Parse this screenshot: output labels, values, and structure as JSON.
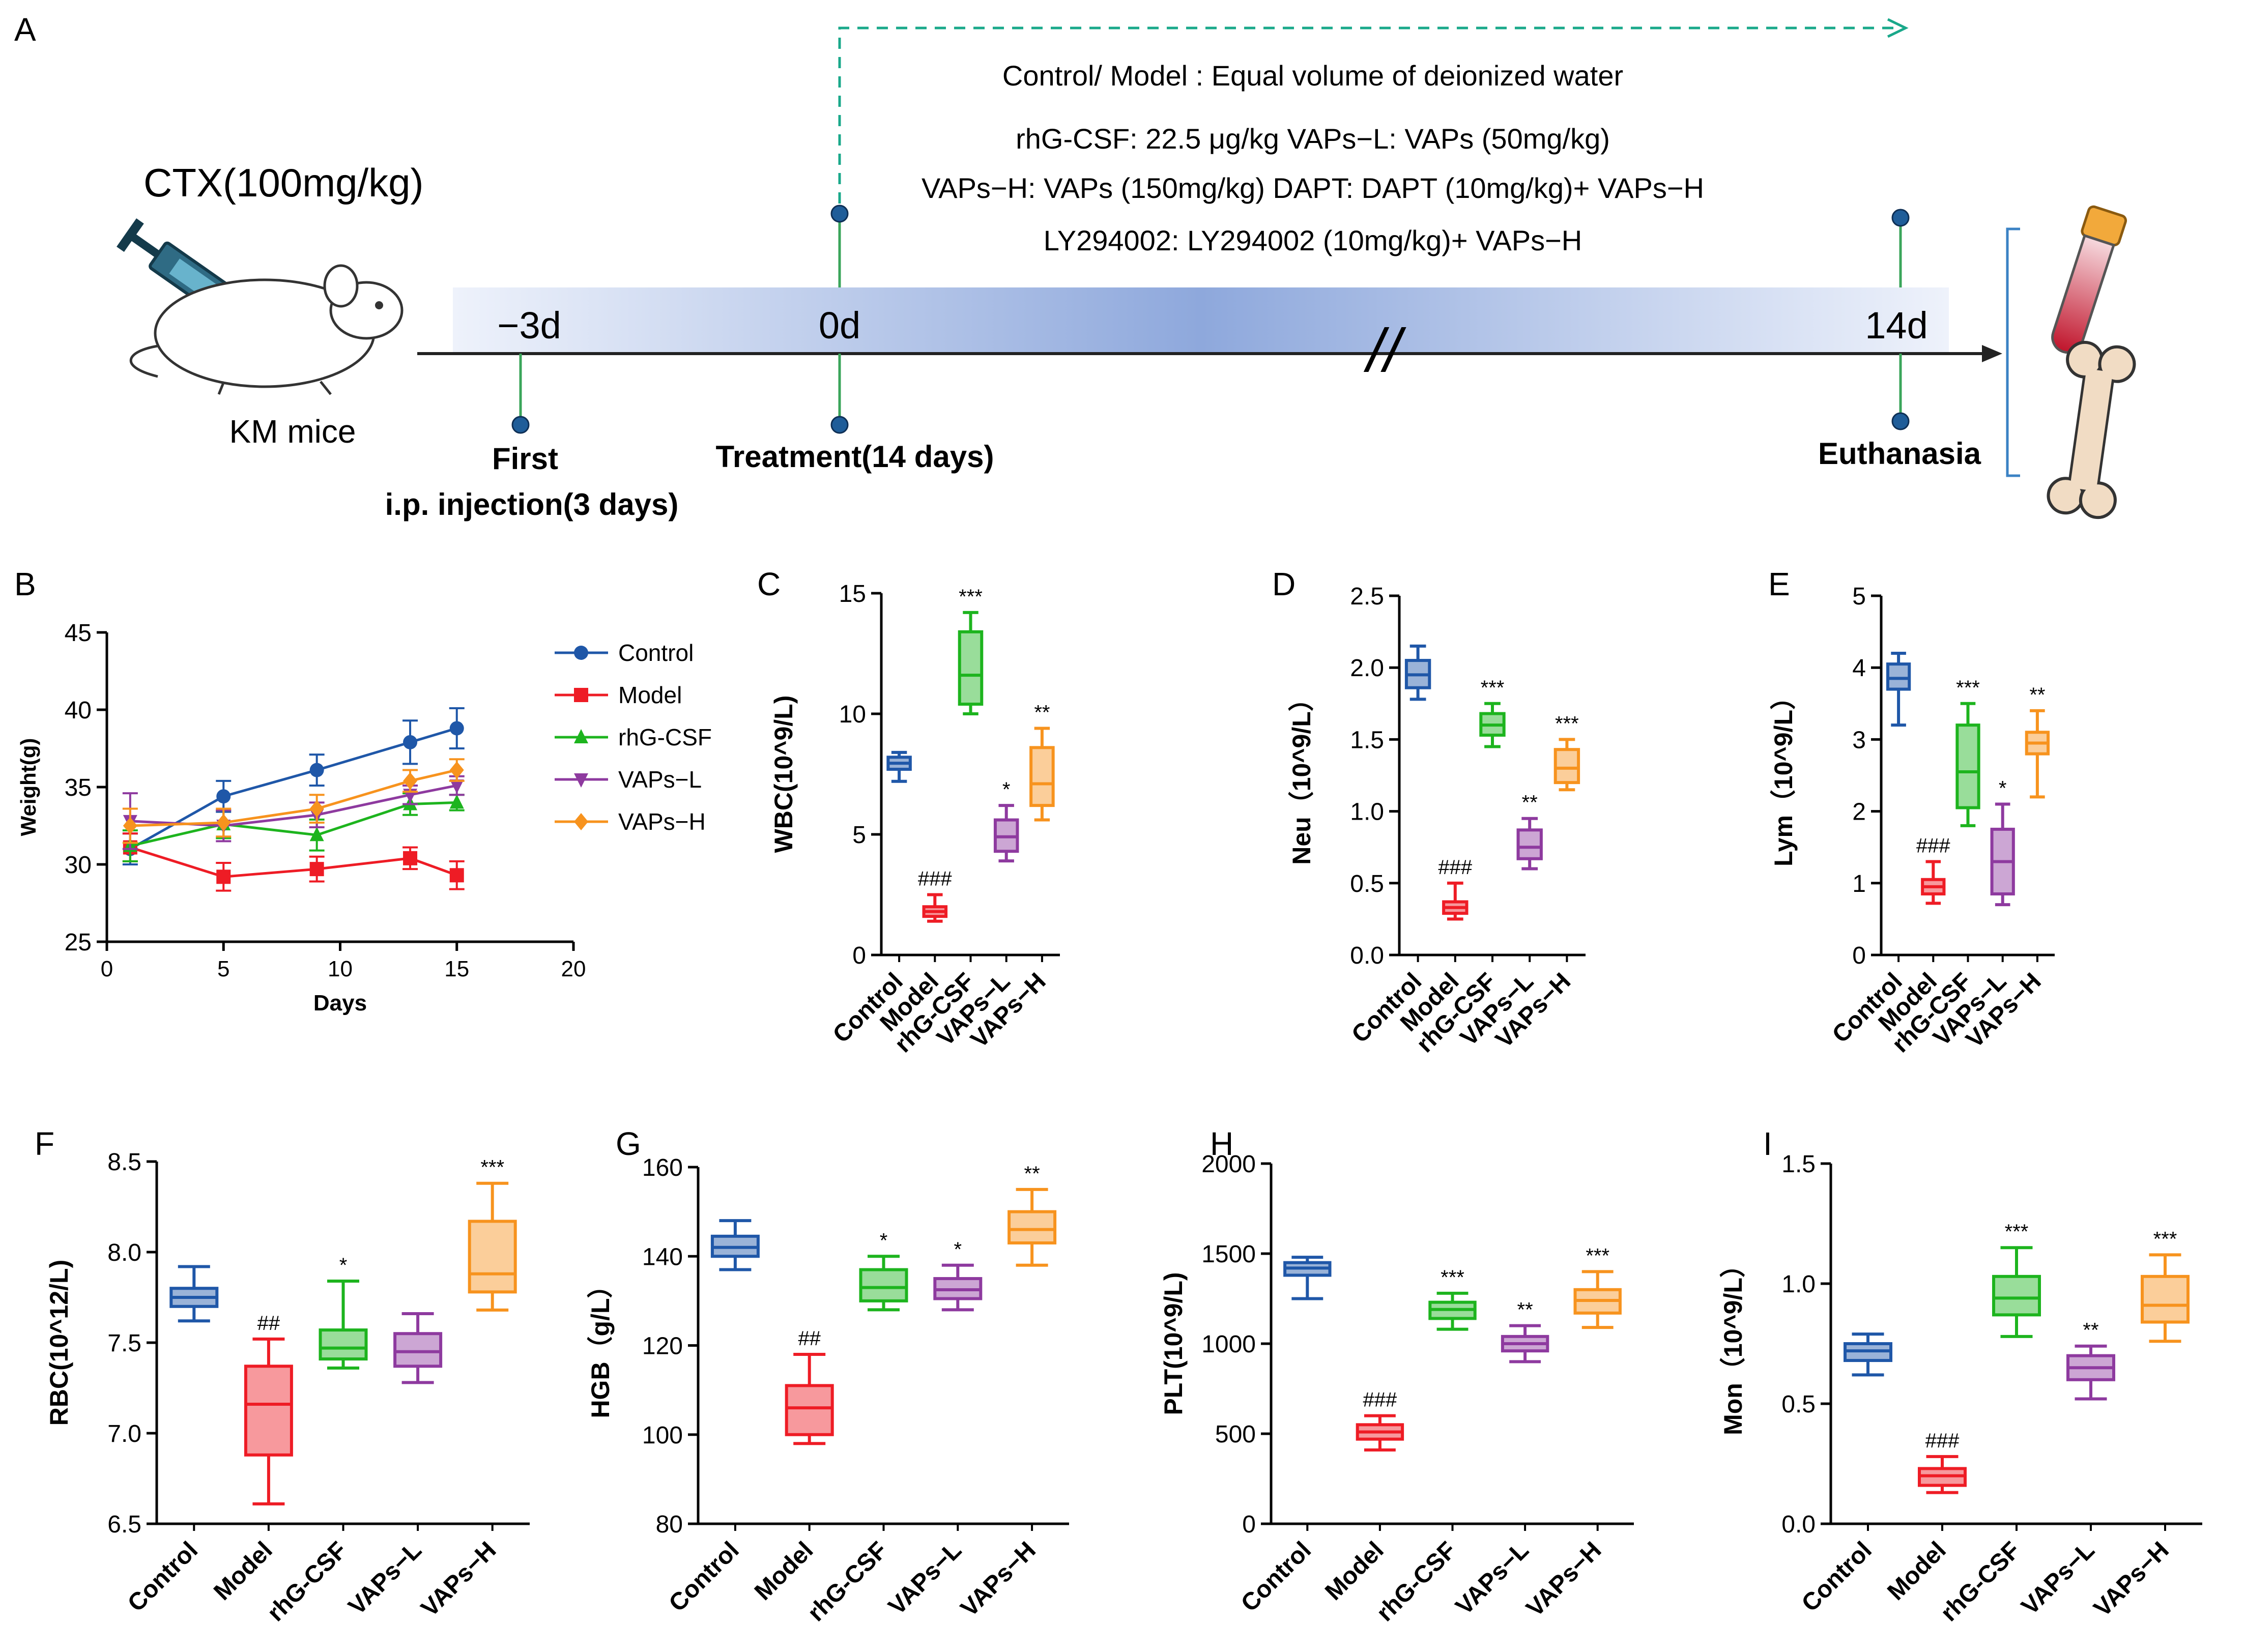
{
  "panel_labels": {
    "A": "A",
    "B": "B",
    "C": "C",
    "D": "D",
    "E": "E",
    "F": "F",
    "G": "G",
    "H": "H",
    "I": "I"
  },
  "colors": {
    "control": "#1f57a8",
    "model": "#ee1c25",
    "rhg": "#1db41e",
    "vapsl": "#8e3a9f",
    "vapsh": "#f7931e",
    "timeline_dot": "#1f5d99",
    "timeline_line": "#3aa55a",
    "dashed": "#19a88a",
    "bracket": "#3b82c4"
  },
  "schematic": {
    "cond_lines": [
      "Control/ Model : Equal volume of deionized water",
      "rhG-CSF: 22.5 μg/kg   VAPs−L: VAPs (50mg/kg)",
      "VAPs−H: VAPs (150mg/kg)   DAPT: DAPT (10mg/kg)+ VAPs−H",
      "LY294002: LY294002 (10mg/kg)+ VAPs−H"
    ],
    "ctx_label": "CTX(100mg/kg)",
    "mouse_label": "KM mice",
    "day_labels": [
      "−3d",
      "0d",
      "14d"
    ],
    "break_mark": "//",
    "events": [
      "First",
      "i.p. injection(3 days)",
      "Treatment(14 days)",
      "Euthanasia"
    ],
    "icons": [
      "syringe-icon",
      "mouse-icon",
      "blood-tube-icon",
      "bone-icon"
    ]
  },
  "chart_data": [
    {
      "id": "B",
      "type": "line",
      "xlabel": "Days",
      "ylabel": "Weight(g)",
      "xlim": [
        0,
        20
      ],
      "ylim": [
        25,
        45
      ],
      "xticks": [
        "0",
        "5",
        "10",
        "15",
        "20"
      ],
      "yticks": [
        "25",
        "30",
        "35",
        "40",
        "45"
      ],
      "x": [
        1,
        5,
        9,
        13,
        15
      ],
      "legend_position": "right",
      "series": [
        {
          "name": "Control",
          "color": "#1f57a8",
          "marker": "circle",
          "values": [
            31.0,
            34.4,
            36.1,
            37.9,
            38.8
          ],
          "err": [
            1.0,
            1.0,
            1.0,
            1.4,
            1.3
          ]
        },
        {
          "name": "Model",
          "color": "#ee1c25",
          "marker": "square",
          "values": [
            31.1,
            29.2,
            29.7,
            30.4,
            29.3
          ],
          "err": [
            0.9,
            0.9,
            0.8,
            0.7,
            0.9
          ]
        },
        {
          "name": "rhG-CSF",
          "color": "#1db41e",
          "marker": "triangle-up",
          "values": [
            31.2,
            32.6,
            31.9,
            33.9,
            34.0
          ],
          "err": [
            1.0,
            0.9,
            1.0,
            0.7,
            0.5
          ]
        },
        {
          "name": "VAPs−L",
          "color": "#8e3a9f",
          "marker": "triangle-down",
          "values": [
            32.8,
            32.5,
            33.2,
            34.5,
            35.1
          ],
          "err": [
            1.8,
            1.0,
            0.8,
            0.6,
            0.6
          ]
        },
        {
          "name": "VAPs−H",
          "color": "#f7931e",
          "marker": "diamond",
          "values": [
            32.5,
            32.7,
            33.6,
            35.4,
            36.1
          ],
          "err": [
            1.1,
            0.9,
            0.9,
            0.7,
            0.7
          ]
        }
      ]
    },
    {
      "id": "C",
      "type": "box",
      "ylabel": "WBC(10^9/L)",
      "ylim": [
        0,
        15
      ],
      "yticks": [
        "0",
        "5",
        "10",
        "15"
      ],
      "categories": [
        "Control",
        "Model",
        "rhG-CSF",
        "VAPs−L",
        "VAPs−H"
      ],
      "boxes": [
        {
          "min": 7.2,
          "q1": 7.7,
          "median": 7.95,
          "q3": 8.2,
          "max": 8.4,
          "sig": ""
        },
        {
          "min": 1.4,
          "q1": 1.6,
          "median": 1.8,
          "q3": 2.0,
          "max": 2.5,
          "sig": "###"
        },
        {
          "min": 10.0,
          "q1": 10.4,
          "median": 11.6,
          "q3": 13.4,
          "max": 14.2,
          "sig": "***"
        },
        {
          "min": 3.9,
          "q1": 4.3,
          "median": 4.9,
          "q3": 5.6,
          "max": 6.2,
          "sig": "*"
        },
        {
          "min": 5.6,
          "q1": 6.2,
          "median": 7.1,
          "q3": 8.6,
          "max": 9.4,
          "sig": "**"
        }
      ]
    },
    {
      "id": "D",
      "type": "box",
      "ylabel": "Neu（10^9/L）",
      "ylim": [
        0,
        2.5
      ],
      "yticks": [
        "0.0",
        "0.5",
        "1.0",
        "1.5",
        "2.0",
        "2.5"
      ],
      "categories": [
        "Control",
        "Model",
        "rhG-CSF",
        "VAPs−L",
        "VAPs−H"
      ],
      "boxes": [
        {
          "min": 1.78,
          "q1": 1.86,
          "median": 1.95,
          "q3": 2.05,
          "max": 2.15,
          "sig": ""
        },
        {
          "min": 0.25,
          "q1": 0.29,
          "median": 0.33,
          "q3": 0.37,
          "max": 0.5,
          "sig": "###"
        },
        {
          "min": 1.45,
          "q1": 1.53,
          "median": 1.6,
          "q3": 1.68,
          "max": 1.75,
          "sig": "***"
        },
        {
          "min": 0.6,
          "q1": 0.67,
          "median": 0.75,
          "q3": 0.87,
          "max": 0.95,
          "sig": "**"
        },
        {
          "min": 1.15,
          "q1": 1.2,
          "median": 1.3,
          "q3": 1.43,
          "max": 1.5,
          "sig": "***"
        }
      ]
    },
    {
      "id": "E",
      "type": "box",
      "ylabel": "Lym（10^9/L）",
      "ylim": [
        0,
        5
      ],
      "yticks": [
        "0",
        "1",
        "2",
        "3",
        "4",
        "5"
      ],
      "categories": [
        "Control",
        "Model",
        "rhG-CSF",
        "VAPs−L",
        "VAPs−H"
      ],
      "boxes": [
        {
          "min": 3.2,
          "q1": 3.7,
          "median": 3.85,
          "q3": 4.05,
          "max": 4.2,
          "sig": ""
        },
        {
          "min": 0.72,
          "q1": 0.85,
          "median": 0.95,
          "q3": 1.05,
          "max": 1.3,
          "sig": "###"
        },
        {
          "min": 1.8,
          "q1": 2.05,
          "median": 2.55,
          "q3": 3.2,
          "max": 3.5,
          "sig": "***"
        },
        {
          "min": 0.7,
          "q1": 0.85,
          "median": 1.3,
          "q3": 1.75,
          "max": 2.1,
          "sig": "*"
        },
        {
          "min": 2.2,
          "q1": 2.8,
          "median": 2.95,
          "q3": 3.1,
          "max": 3.4,
          "sig": "**"
        }
      ]
    },
    {
      "id": "F",
      "type": "box",
      "ylabel": "RBC(10^12/L)",
      "ylim": [
        6.5,
        8.5
      ],
      "yticks": [
        "6.5",
        "7.0",
        "7.5",
        "8.0",
        "8.5"
      ],
      "categories": [
        "Control",
        "Model",
        "rhG-CSF",
        "VAPs−L",
        "VAPs−H"
      ],
      "boxes": [
        {
          "min": 7.62,
          "q1": 7.7,
          "median": 7.75,
          "q3": 7.8,
          "max": 7.92,
          "sig": ""
        },
        {
          "min": 6.61,
          "q1": 6.88,
          "median": 7.16,
          "q3": 7.37,
          "max": 7.52,
          "sig": "##"
        },
        {
          "min": 7.36,
          "q1": 7.41,
          "median": 7.47,
          "q3": 7.57,
          "max": 7.84,
          "sig": "*"
        },
        {
          "min": 7.28,
          "q1": 7.37,
          "median": 7.45,
          "q3": 7.55,
          "max": 7.66,
          "sig": ""
        },
        {
          "min": 7.68,
          "q1": 7.78,
          "median": 7.88,
          "q3": 8.17,
          "max": 8.38,
          "sig": "***"
        }
      ]
    },
    {
      "id": "G",
      "type": "box",
      "ylabel": "HGB（g/L）",
      "ylim": [
        80,
        160
      ],
      "yticks": [
        "80",
        "100",
        "120",
        "140",
        "160"
      ],
      "categories": [
        "Control",
        "Model",
        "rhG-CSF",
        "VAPs−L",
        "VAPs−H"
      ],
      "boxes": [
        {
          "min": 137,
          "q1": 140,
          "median": 142,
          "q3": 144.5,
          "max": 148,
          "sig": ""
        },
        {
          "min": 98,
          "q1": 100,
          "median": 106,
          "q3": 111,
          "max": 118,
          "sig": "##"
        },
        {
          "min": 128,
          "q1": 130,
          "median": 133,
          "q3": 137,
          "max": 140,
          "sig": "*"
        },
        {
          "min": 128,
          "q1": 130.5,
          "median": 132.5,
          "q3": 135,
          "max": 138,
          "sig": "*"
        },
        {
          "min": 138,
          "q1": 143,
          "median": 146,
          "q3": 150,
          "max": 155,
          "sig": "**"
        }
      ]
    },
    {
      "id": "H",
      "type": "box",
      "ylabel": "PLT(10^9/L)",
      "ylim": [
        0,
        2000
      ],
      "yticks": [
        "0",
        "500",
        "1000",
        "1500",
        "2000"
      ],
      "categories": [
        "Control",
        "Model",
        "rhG-CSF",
        "VAPs−L",
        "VAPs−H"
      ],
      "boxes": [
        {
          "min": 1250,
          "q1": 1380,
          "median": 1420,
          "q3": 1450,
          "max": 1480,
          "sig": ""
        },
        {
          "min": 410,
          "q1": 470,
          "median": 510,
          "q3": 550,
          "max": 600,
          "sig": "###"
        },
        {
          "min": 1080,
          "q1": 1140,
          "median": 1190,
          "q3": 1230,
          "max": 1280,
          "sig": "***"
        },
        {
          "min": 900,
          "q1": 960,
          "median": 1000,
          "q3": 1040,
          "max": 1100,
          "sig": "**"
        },
        {
          "min": 1090,
          "q1": 1170,
          "median": 1240,
          "q3": 1300,
          "max": 1400,
          "sig": "***"
        }
      ]
    },
    {
      "id": "I",
      "type": "box",
      "ylabel": "Mon（10^9/L）",
      "ylim": [
        0,
        1.5
      ],
      "yticks": [
        "0.0",
        "0.5",
        "1.0",
        "1.5"
      ],
      "categories": [
        "Control",
        "Model",
        "rhG-CSF",
        "VAPs−L",
        "VAPs−H"
      ],
      "boxes": [
        {
          "min": 0.62,
          "q1": 0.68,
          "median": 0.72,
          "q3": 0.75,
          "max": 0.79,
          "sig": ""
        },
        {
          "min": 0.13,
          "q1": 0.16,
          "median": 0.2,
          "q3": 0.23,
          "max": 0.28,
          "sig": "###"
        },
        {
          "min": 0.78,
          "q1": 0.87,
          "median": 0.94,
          "q3": 1.03,
          "max": 1.15,
          "sig": "***"
        },
        {
          "min": 0.52,
          "q1": 0.6,
          "median": 0.65,
          "q3": 0.7,
          "max": 0.74,
          "sig": "**"
        },
        {
          "min": 0.76,
          "q1": 0.84,
          "median": 0.91,
          "q3": 1.03,
          "max": 1.12,
          "sig": "***"
        }
      ]
    }
  ]
}
